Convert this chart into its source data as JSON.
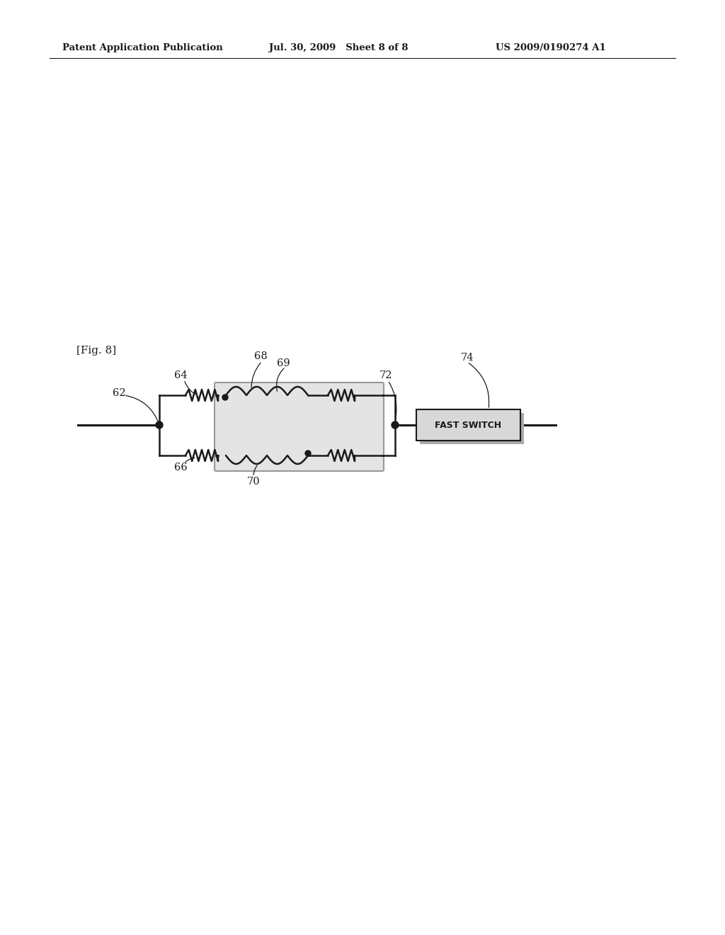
{
  "fig_label": "[Fig. 8]",
  "header_left": "Patent Application Publication",
  "header_mid": "Jul. 30, 2009   Sheet 8 of 8",
  "header_right": "US 2009/0190274 A1",
  "background_color": "#ffffff",
  "line_color": "#1a1a1a",
  "fast_switch_text": "FAST SWITCH"
}
